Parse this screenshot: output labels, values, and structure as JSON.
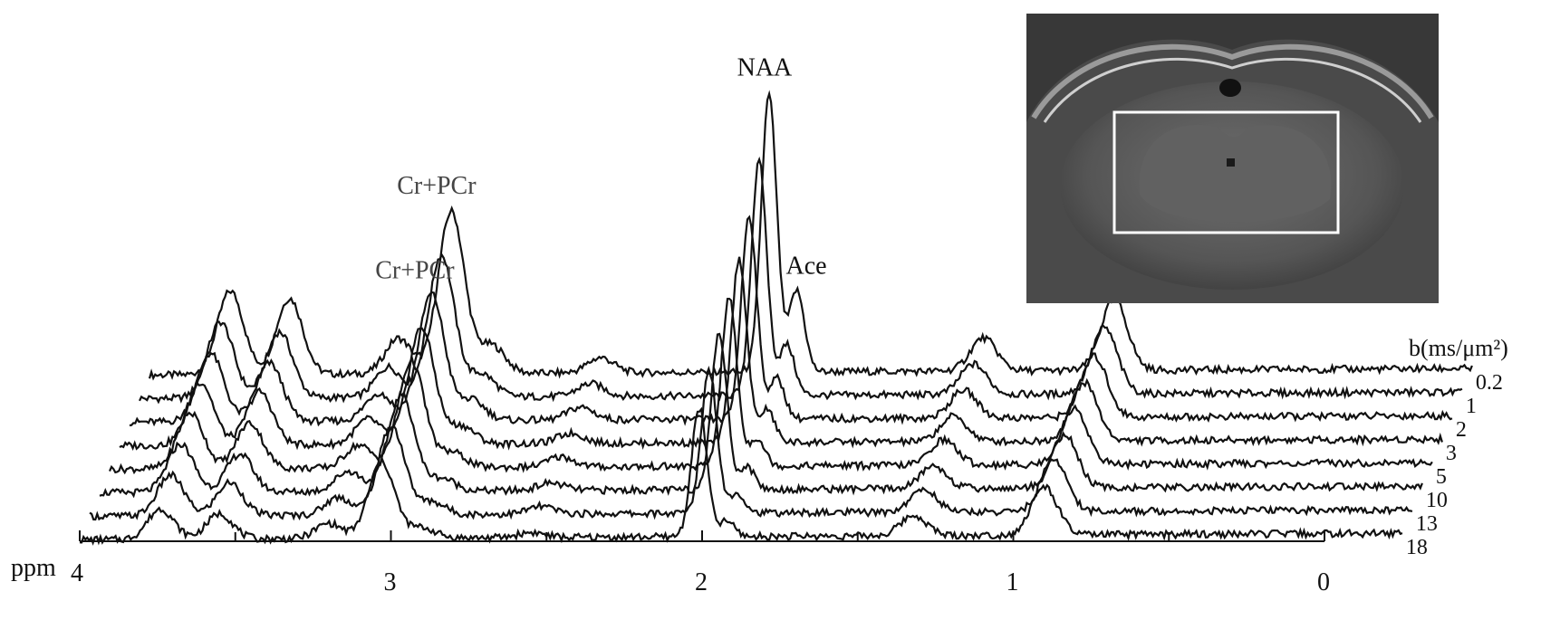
{
  "chart_data": {
    "type": "line",
    "x_axis": {
      "label": "ppm",
      "ticks": [
        {
          "value": 4,
          "label": "4"
        },
        {
          "value": 3,
          "label": "3"
        },
        {
          "value": 2,
          "label": "2"
        },
        {
          "value": 1,
          "label": "1"
        },
        {
          "value": 0,
          "label": "0"
        }
      ],
      "minor_ticks": [
        3.5,
        2.5,
        1.5,
        0.5
      ],
      "range": [
        4,
        0
      ],
      "reversed": true
    },
    "series_axis_label": "b(ms/μm²)",
    "baseline_amplitude": 0.3,
    "series": [
      {
        "name": "0.2",
        "label": "0.2",
        "peaks": [
          {
            "ppm": 3.74,
            "amp": 3.3
          },
          {
            "ppm": 3.55,
            "amp": 3.0
          },
          {
            "ppm": 3.2,
            "amp": 1.4
          },
          {
            "ppm": 3.03,
            "amp": 6.4
          },
          {
            "ppm": 2.9,
            "amp": 1.1
          },
          {
            "ppm": 2.55,
            "amp": 0.6
          },
          {
            "ppm": 2.0,
            "amp": 1.0
          },
          {
            "ppm": 2.01,
            "amp": 10.0
          },
          {
            "ppm": 1.92,
            "amp": 3.2
          },
          {
            "ppm": 1.32,
            "amp": 1.3
          },
          {
            "ppm": 0.9,
            "amp": 2.8
          }
        ]
      },
      {
        "name": "1",
        "label": "1",
        "peaks": [
          {
            "ppm": 3.74,
            "amp": 3.0
          },
          {
            "ppm": 3.55,
            "amp": 2.6
          },
          {
            "ppm": 3.2,
            "amp": 1.2
          },
          {
            "ppm": 3.03,
            "amp": 5.6
          },
          {
            "ppm": 2.9,
            "amp": 0.9
          },
          {
            "ppm": 2.55,
            "amp": 0.5
          },
          {
            "ppm": 2.0,
            "amp": 0.9
          },
          {
            "ppm": 2.01,
            "amp": 8.4
          },
          {
            "ppm": 1.92,
            "amp": 2.0
          },
          {
            "ppm": 1.32,
            "amp": 1.2
          },
          {
            "ppm": 0.9,
            "amp": 2.6
          }
        ]
      },
      {
        "name": "2",
        "label": "2",
        "peaks": [
          {
            "ppm": 3.74,
            "amp": 2.7
          },
          {
            "ppm": 3.55,
            "amp": 2.3
          },
          {
            "ppm": 3.2,
            "amp": 1.1
          },
          {
            "ppm": 3.03,
            "amp": 5.0
          },
          {
            "ppm": 2.9,
            "amp": 0.8
          },
          {
            "ppm": 2.55,
            "amp": 0.5
          },
          {
            "ppm": 2.0,
            "amp": 0.8
          },
          {
            "ppm": 2.01,
            "amp": 7.3
          },
          {
            "ppm": 1.92,
            "amp": 1.6
          },
          {
            "ppm": 1.32,
            "amp": 1.1
          },
          {
            "ppm": 0.9,
            "amp": 2.4
          }
        ]
      },
      {
        "name": "3",
        "label": "3",
        "peaks": [
          {
            "ppm": 3.74,
            "amp": 2.5
          },
          {
            "ppm": 3.55,
            "amp": 2.1
          },
          {
            "ppm": 3.2,
            "amp": 1.0
          },
          {
            "ppm": 3.03,
            "amp": 4.6
          },
          {
            "ppm": 2.9,
            "amp": 0.7
          },
          {
            "ppm": 2.55,
            "amp": 0.4
          },
          {
            "ppm": 2.0,
            "amp": 0.8
          },
          {
            "ppm": 2.01,
            "amp": 6.5
          },
          {
            "ppm": 1.92,
            "amp": 1.3
          },
          {
            "ppm": 1.32,
            "amp": 1.0
          },
          {
            "ppm": 0.9,
            "amp": 2.3
          }
        ]
      },
      {
        "name": "5",
        "label": "5",
        "peaks": [
          {
            "ppm": 3.74,
            "amp": 2.2
          },
          {
            "ppm": 3.55,
            "amp": 1.8
          },
          {
            "ppm": 3.2,
            "amp": 0.9
          },
          {
            "ppm": 3.03,
            "amp": 4.2
          },
          {
            "ppm": 2.9,
            "amp": 0.6
          },
          {
            "ppm": 2.55,
            "amp": 0.4
          },
          {
            "ppm": 2.0,
            "amp": 0.7
          },
          {
            "ppm": 2.01,
            "amp": 6.0
          },
          {
            "ppm": 1.92,
            "amp": 1.1
          },
          {
            "ppm": 1.32,
            "amp": 1.0
          },
          {
            "ppm": 0.9,
            "amp": 2.2
          }
        ]
      },
      {
        "name": "10",
        "label": "10",
        "peaks": [
          {
            "ppm": 3.74,
            "amp": 1.9
          },
          {
            "ppm": 3.55,
            "amp": 1.5
          },
          {
            "ppm": 3.2,
            "amp": 0.8
          },
          {
            "ppm": 3.03,
            "amp": 3.8
          },
          {
            "ppm": 2.9,
            "amp": 0.5
          },
          {
            "ppm": 2.55,
            "amp": 0.3
          },
          {
            "ppm": 2.0,
            "amp": 0.6
          },
          {
            "ppm": 2.01,
            "amp": 5.6
          },
          {
            "ppm": 1.92,
            "amp": 0.9
          },
          {
            "ppm": 1.32,
            "amp": 0.9
          },
          {
            "ppm": 0.9,
            "amp": 2.1
          }
        ]
      },
      {
        "name": "13",
        "label": "13",
        "peaks": [
          {
            "ppm": 3.74,
            "amp": 1.6
          },
          {
            "ppm": 3.55,
            "amp": 1.3
          },
          {
            "ppm": 3.2,
            "amp": 0.7
          },
          {
            "ppm": 3.03,
            "amp": 3.5
          },
          {
            "ppm": 2.9,
            "amp": 0.5
          },
          {
            "ppm": 2.55,
            "amp": 0.3
          },
          {
            "ppm": 2.0,
            "amp": 0.5
          },
          {
            "ppm": 2.01,
            "amp": 5.2
          },
          {
            "ppm": 1.92,
            "amp": 0.8
          },
          {
            "ppm": 1.32,
            "amp": 0.9
          },
          {
            "ppm": 0.9,
            "amp": 2.0
          }
        ]
      },
      {
        "name": "18",
        "label": "18",
        "peaks": [
          {
            "ppm": 3.74,
            "amp": 1.2
          },
          {
            "ppm": 3.55,
            "amp": 1.0
          },
          {
            "ppm": 3.2,
            "amp": 0.6
          },
          {
            "ppm": 3.03,
            "amp": 3.0
          },
          {
            "ppm": 2.9,
            "amp": 0.4
          },
          {
            "ppm": 2.55,
            "amp": 0.2
          },
          {
            "ppm": 2.0,
            "amp": 0.4
          },
          {
            "ppm": 2.01,
            "amp": 4.7
          },
          {
            "ppm": 1.92,
            "amp": 0.6
          },
          {
            "ppm": 1.32,
            "amp": 0.8
          },
          {
            "ppm": 0.9,
            "amp": 1.9
          }
        ]
      }
    ],
    "annotations": [
      {
        "text": "NAA",
        "ppm": 2.01,
        "series": "0.2"
      },
      {
        "text": "Ace",
        "ppm": 1.92,
        "series": "0.2"
      },
      {
        "text": "Cr+PCr",
        "ppm": 3.03,
        "series": "0.2"
      },
      {
        "text": "Cr+PCr",
        "ppm": 3.03,
        "series": "2"
      }
    ],
    "inset": {
      "content": "MRI brain slice with rectangular voxel overlay",
      "box_color": "#ffffff"
    },
    "line_color": "#111111",
    "grid": false,
    "legend": "none"
  }
}
